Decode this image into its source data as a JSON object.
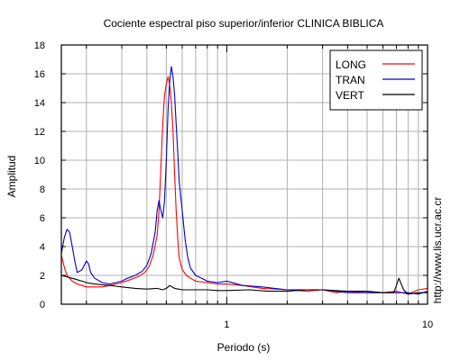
{
  "chart_data": {
    "type": "line",
    "title": "Cociente espectral piso superior/inferior  CLINICA BIBLICA",
    "xlabel": "Periodo (s)",
    "ylabel": "Amplitud",
    "watermark": "http://www.lis.ucr.ac.cr",
    "x_scale": "log",
    "xlim": [
      0.15,
      10
    ],
    "ylim": [
      0,
      18
    ],
    "x_ticks": [
      1,
      10
    ],
    "y_ticks": [
      0,
      2,
      4,
      6,
      8,
      10,
      12,
      14,
      16,
      18
    ],
    "grid": true,
    "legend_position": "top-right",
    "series": [
      {
        "name": "LONG",
        "color": "#ff0000",
        "points": [
          [
            0.15,
            3.4
          ],
          [
            0.155,
            2.6
          ],
          [
            0.16,
            2.0
          ],
          [
            0.17,
            1.6
          ],
          [
            0.18,
            1.4
          ],
          [
            0.19,
            1.3
          ],
          [
            0.2,
            1.2
          ],
          [
            0.22,
            1.2
          ],
          [
            0.24,
            1.2
          ],
          [
            0.26,
            1.3
          ],
          [
            0.28,
            1.4
          ],
          [
            0.3,
            1.5
          ],
          [
            0.33,
            1.7
          ],
          [
            0.36,
            1.9
          ],
          [
            0.39,
            2.2
          ],
          [
            0.41,
            2.6
          ],
          [
            0.43,
            3.4
          ],
          [
            0.45,
            4.8
          ],
          [
            0.46,
            6.5
          ],
          [
            0.47,
            9.5
          ],
          [
            0.48,
            12.5
          ],
          [
            0.49,
            14.5
          ],
          [
            0.5,
            15.3
          ],
          [
            0.51,
            15.8
          ],
          [
            0.52,
            15.2
          ],
          [
            0.53,
            14.0
          ],
          [
            0.54,
            12.0
          ],
          [
            0.55,
            9.0
          ],
          [
            0.56,
            6.5
          ],
          [
            0.57,
            4.5
          ],
          [
            0.58,
            3.2
          ],
          [
            0.6,
            2.4
          ],
          [
            0.63,
            2.0
          ],
          [
            0.66,
            1.8
          ],
          [
            0.7,
            1.6
          ],
          [
            0.8,
            1.5
          ],
          [
            0.9,
            1.4
          ],
          [
            1.0,
            1.4
          ],
          [
            1.2,
            1.3
          ],
          [
            1.5,
            1.1
          ],
          [
            2.0,
            1.0
          ],
          [
            2.5,
            0.9
          ],
          [
            3.0,
            1.0
          ],
          [
            3.5,
            0.8
          ],
          [
            4.0,
            0.9
          ],
          [
            5.0,
            0.8
          ],
          [
            6.0,
            0.8
          ],
          [
            7.0,
            0.9
          ],
          [
            8.0,
            0.7
          ],
          [
            9.0,
            1.0
          ],
          [
            10.0,
            1.1
          ]
        ]
      },
      {
        "name": "TRAN",
        "color": "#0000cc",
        "points": [
          [
            0.15,
            3.5
          ],
          [
            0.155,
            4.6
          ],
          [
            0.16,
            5.2
          ],
          [
            0.165,
            5.0
          ],
          [
            0.17,
            4.0
          ],
          [
            0.175,
            3.0
          ],
          [
            0.18,
            2.2
          ],
          [
            0.19,
            2.4
          ],
          [
            0.2,
            3.0
          ],
          [
            0.205,
            2.8
          ],
          [
            0.21,
            2.2
          ],
          [
            0.22,
            1.8
          ],
          [
            0.24,
            1.5
          ],
          [
            0.26,
            1.4
          ],
          [
            0.28,
            1.5
          ],
          [
            0.3,
            1.6
          ],
          [
            0.32,
            1.8
          ],
          [
            0.35,
            2.0
          ],
          [
            0.38,
            2.3
          ],
          [
            0.4,
            2.7
          ],
          [
            0.42,
            3.5
          ],
          [
            0.44,
            5.0
          ],
          [
            0.45,
            6.5
          ],
          [
            0.46,
            7.2
          ],
          [
            0.47,
            6.5
          ],
          [
            0.48,
            6.0
          ],
          [
            0.49,
            7.2
          ],
          [
            0.5,
            10.0
          ],
          [
            0.51,
            13.5
          ],
          [
            0.52,
            15.5
          ],
          [
            0.53,
            16.5
          ],
          [
            0.54,
            15.8
          ],
          [
            0.55,
            14.5
          ],
          [
            0.56,
            12.5
          ],
          [
            0.57,
            10.5
          ],
          [
            0.58,
            8.5
          ],
          [
            0.6,
            6.5
          ],
          [
            0.62,
            4.5
          ],
          [
            0.64,
            3.2
          ],
          [
            0.66,
            2.5
          ],
          [
            0.7,
            2.0
          ],
          [
            0.75,
            1.8
          ],
          [
            0.8,
            1.6
          ],
          [
            0.9,
            1.5
          ],
          [
            1.0,
            1.6
          ],
          [
            1.2,
            1.3
          ],
          [
            1.5,
            1.2
          ],
          [
            2.0,
            1.0
          ],
          [
            2.5,
            1.0
          ],
          [
            3.0,
            1.0
          ],
          [
            3.5,
            0.9
          ],
          [
            4.0,
            0.8
          ],
          [
            5.0,
            0.8
          ],
          [
            6.0,
            0.8
          ],
          [
            7.0,
            0.8
          ],
          [
            8.0,
            0.8
          ],
          [
            9.0,
            0.7
          ],
          [
            10.0,
            0.9
          ]
        ]
      },
      {
        "name": "VERT",
        "color": "#000000",
        "points": [
          [
            0.15,
            2.0
          ],
          [
            0.16,
            1.9
          ],
          [
            0.17,
            1.8
          ],
          [
            0.18,
            1.7
          ],
          [
            0.19,
            1.6
          ],
          [
            0.2,
            1.5
          ],
          [
            0.22,
            1.4
          ],
          [
            0.24,
            1.35
          ],
          [
            0.26,
            1.3
          ],
          [
            0.3,
            1.2
          ],
          [
            0.35,
            1.1
          ],
          [
            0.4,
            1.05
          ],
          [
            0.45,
            1.1
          ],
          [
            0.48,
            1.0
          ],
          [
            0.5,
            1.1
          ],
          [
            0.52,
            1.3
          ],
          [
            0.55,
            1.1
          ],
          [
            0.6,
            1.0
          ],
          [
            0.7,
            1.0
          ],
          [
            0.8,
            1.0
          ],
          [
            0.9,
            0.95
          ],
          [
            1.0,
            0.95
          ],
          [
            1.3,
            1.0
          ],
          [
            1.6,
            0.9
          ],
          [
            2.0,
            0.9
          ],
          [
            2.5,
            1.0
          ],
          [
            3.0,
            1.0
          ],
          [
            4.0,
            0.9
          ],
          [
            5.0,
            0.9
          ],
          [
            6.0,
            0.8
          ],
          [
            6.8,
            0.8
          ],
          [
            7.2,
            1.8
          ],
          [
            7.6,
            1.0
          ],
          [
            8.0,
            0.7
          ],
          [
            9.0,
            0.8
          ],
          [
            10.0,
            0.8
          ]
        ]
      }
    ]
  }
}
